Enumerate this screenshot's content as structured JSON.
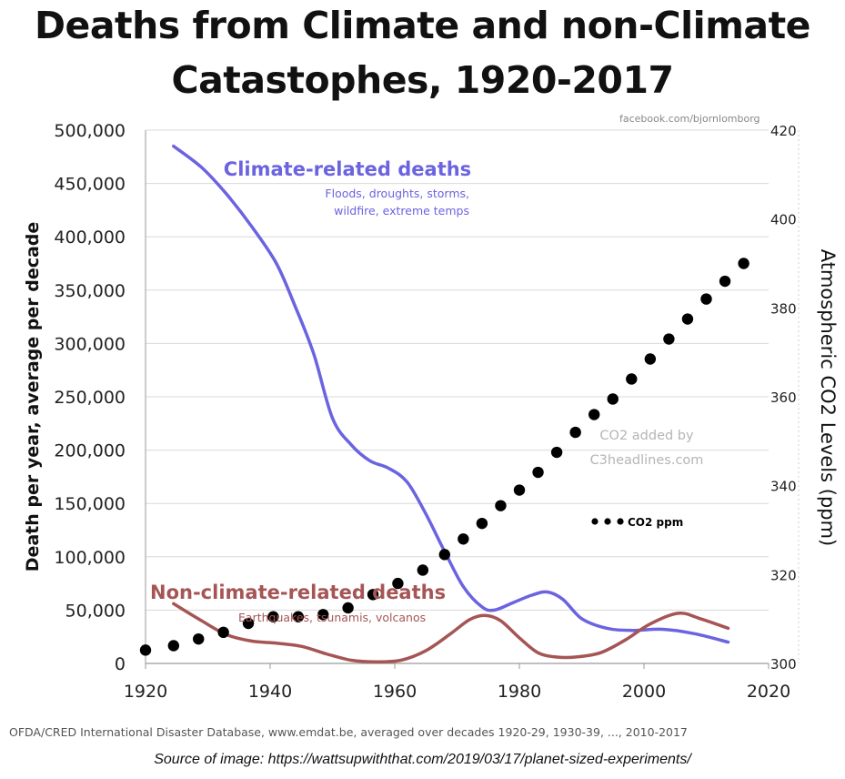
{
  "chart_data": {
    "type": "line",
    "title": "Deaths from Climate and non-Climate Catastophes, 1920-2017",
    "title_lines": [
      "Deaths from Climate and non-Climate",
      "Catastophes, 1920-2017"
    ],
    "credit": "facebook.com/bjornlomborg",
    "ylabel": "Death per year, average per decade",
    "y2label": "Atmospheric CO2 Levels (ppm)",
    "xlim": [
      1920,
      2020
    ],
    "ylim": [
      0,
      500000
    ],
    "y2lim": [
      300,
      420
    ],
    "x_ticks": [
      1920,
      1940,
      1960,
      1980,
      2000,
      2020
    ],
    "y_ticks": [
      0,
      50000,
      100000,
      150000,
      200000,
      250000,
      300000,
      350000,
      400000,
      450000,
      500000
    ],
    "y_tick_labels": [
      "0",
      "50,000",
      "100,000",
      "150,000",
      "200,000",
      "250,000",
      "300,000",
      "350,000",
      "400,000",
      "450,000",
      "500,000"
    ],
    "y2_ticks": [
      300,
      320,
      340,
      360,
      380,
      400,
      420
    ],
    "y2_tick_labels": [
      "300",
      "320",
      "340",
      "360",
      "380",
      "400",
      "420"
    ],
    "grid": true,
    "series": [
      {
        "name": "Climate-related deaths",
        "subtitle_lines": [
          "Floods, droughts, storms,",
          "wildfire, extreme temps"
        ],
        "color": "#6b63e0",
        "axis": "left",
        "x": [
          1924.5,
          1929,
          1933,
          1937,
          1941,
          1944,
          1947,
          1950,
          1953,
          1956,
          1959,
          1962,
          1965,
          1968,
          1971,
          1974,
          1976,
          1979,
          1982,
          1984.5,
          1987,
          1990,
          1994,
          1998,
          2003,
          2008,
          2013.5
        ],
        "values": [
          485000,
          465000,
          440000,
          410000,
          375000,
          335000,
          290000,
          230000,
          205000,
          190000,
          183000,
          170000,
          140000,
          105000,
          72000,
          53000,
          50000,
          57000,
          64000,
          67000,
          60000,
          42000,
          33000,
          31000,
          32000,
          28000,
          20000
        ]
      },
      {
        "name": "Non-climate-related deaths",
        "subtitle": "Earthquakes, tsunamis, volcanos",
        "color": "#a65555",
        "axis": "left",
        "x": [
          1924.5,
          1929,
          1933,
          1937,
          1941,
          1945,
          1949,
          1953,
          1957,
          1961,
          1965,
          1969,
          1972,
          1974.5,
          1977,
          1980,
          1983,
          1986,
          1989,
          1993,
          1997,
          2001,
          2005.5,
          2009,
          2013.5
        ],
        "values": [
          56000,
          40000,
          27000,
          21000,
          19000,
          16000,
          9000,
          3000,
          1500,
          3000,
          12000,
          28000,
          41000,
          45000,
          40000,
          24000,
          10000,
          6000,
          6000,
          10000,
          22000,
          37000,
          47000,
          42000,
          33000
        ]
      },
      {
        "name": "CO2 ppm",
        "color": "#000000",
        "axis": "right",
        "style": "dots",
        "x": [
          1920,
          1924.5,
          1928.5,
          1932.5,
          1936.5,
          1940.5,
          1944.5,
          1948.5,
          1952.5,
          1956.5,
          1960.5,
          1964.5,
          1968,
          1971,
          1974,
          1977,
          1980,
          1983,
          1986,
          1989,
          1992,
          1995,
          1998,
          2001,
          2004,
          2007,
          2010,
          2013,
          2016
        ],
        "values": [
          303,
          304,
          305.5,
          307,
          309,
          310.5,
          310.5,
          311,
          312.5,
          315.5,
          318,
          321,
          324.5,
          328,
          331.5,
          335.5,
          339,
          343,
          347.5,
          352,
          356,
          359.5,
          364,
          368.5,
          373,
          377.5,
          382,
          386,
          390
        ]
      }
    ],
    "annotation": "CO2 added by C3headlines.com",
    "annotation_lines": [
      "CO2 added by",
      "C3headlines.com"
    ],
    "legend": {
      "label": "CO2 ppm",
      "placement": "center-right"
    }
  },
  "footer": {
    "source": "OFDA/CRED International Disaster Database, www.emdat.be, averaged over decades 1920-29, 1930-39, ..., 2010-2017",
    "image_source": "Source of image: https://wattsupwiththat.com/2019/03/17/planet-sized-experiments/"
  },
  "colors": {
    "climate": "#6b63e0",
    "non_climate": "#a65555",
    "co2": "#000000",
    "grid": "#d9d9d9"
  }
}
